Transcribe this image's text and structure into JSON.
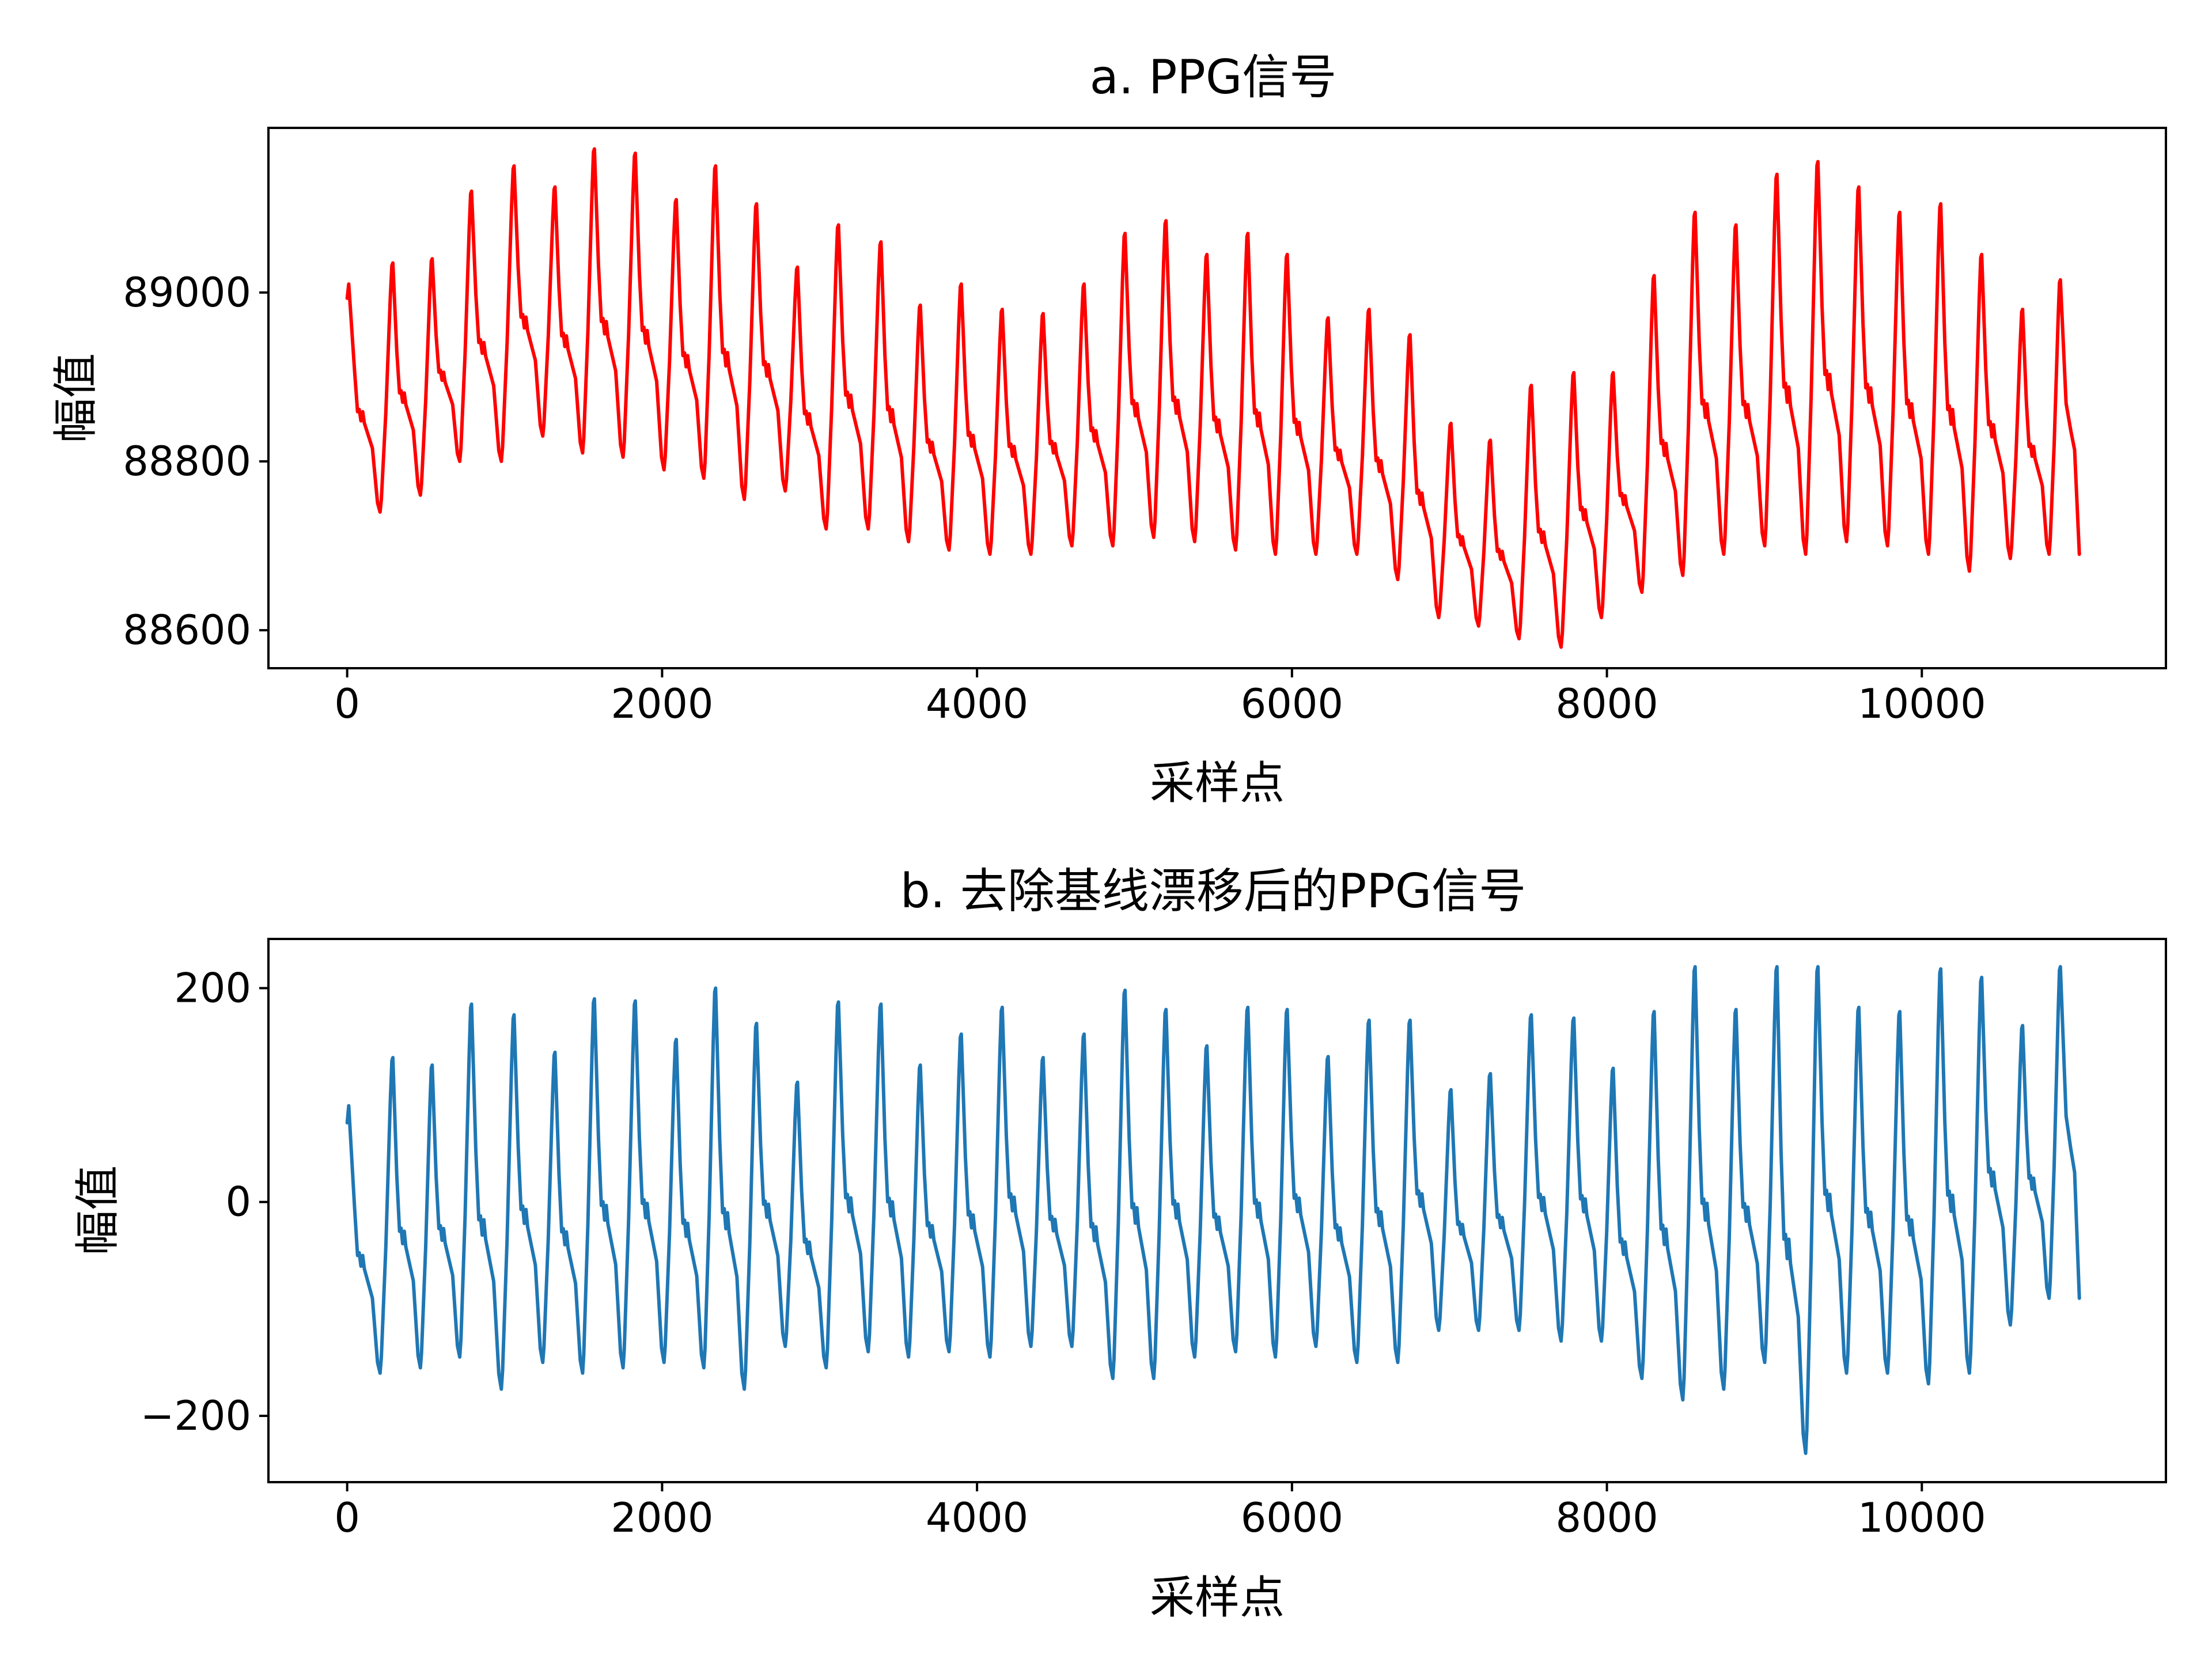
{
  "chart_data": [
    {
      "type": "line",
      "title": "a. PPG信号",
      "xlabel": "采样点",
      "ylabel": "幅值",
      "xlim": [
        -500,
        11550
      ],
      "ylim": [
        88555,
        89195
      ],
      "x_ticks": [
        0,
        2000,
        4000,
        6000,
        8000,
        10000
      ],
      "x_tick_labels": [
        "0",
        "2000",
        "4000",
        "6000",
        "8000",
        "10000"
      ],
      "y_ticks": [
        88600,
        88800,
        89000
      ],
      "y_tick_labels": [
        "88600",
        "88800",
        "89000"
      ],
      "grid": false,
      "legend": "none",
      "color": "#ff0000",
      "series": [
        {
          "x_start": 0,
          "x_end": 11000,
          "beat_peak_x": [
            20,
            290,
            540,
            790,
            1060,
            1320,
            1570,
            1830,
            2090,
            2340,
            2600,
            2860,
            3120,
            3390,
            3640,
            3900,
            4160,
            4420,
            4680,
            4940,
            5200,
            5460,
            5720,
            5970,
            6230,
            6490,
            6750,
            7010,
            7260,
            7520,
            7790,
            8040,
            8300,
            8560,
            8820,
            9080,
            9340,
            9600,
            9860,
            10120,
            10380,
            10640,
            10880
          ],
          "beat_peak_y": [
            89010,
            89035,
            89040,
            89120,
            89150,
            89125,
            89170,
            89165,
            89110,
            89150,
            89105,
            89030,
            89080,
            89060,
            88985,
            89010,
            88980,
            88975,
            89010,
            89070,
            89085,
            89045,
            89070,
            89045,
            88970,
            88980,
            88950,
            88845,
            88825,
            88890,
            88905,
            88905,
            89020,
            89095,
            89080,
            89140,
            89155,
            89125,
            89095,
            89105,
            89045,
            88980,
            89015
          ],
          "beat_trough_y": [
            88730,
            88740,
            88760,
            88800,
            88800,
            88830,
            88810,
            88805,
            88790,
            88780,
            88755,
            88765,
            88720,
            88720,
            88705,
            88695,
            88690,
            88690,
            88700,
            88700,
            88710,
            88705,
            88695,
            88690,
            88690,
            88690,
            88660,
            88615,
            88605,
            88590,
            88580,
            88615,
            88645,
            88665,
            88690,
            88700,
            88690,
            88705,
            88700,
            88690,
            88670,
            88685,
            88690
          ],
          "end_value": 88690
        }
      ]
    },
    {
      "type": "line",
      "title": "b. 去除基线漂移后的PPG信号",
      "xlabel": "采样点",
      "ylabel": "幅值",
      "xlim": [
        -500,
        11550
      ],
      "ylim": [
        -262,
        246
      ],
      "x_ticks": [
        0,
        2000,
        4000,
        6000,
        8000,
        10000
      ],
      "x_tick_labels": [
        "0",
        "2000",
        "4000",
        "6000",
        "8000",
        "10000"
      ],
      "y_ticks": [
        -200,
        0,
        200
      ],
      "y_tick_labels": [
        "−200",
        "0",
        "200"
      ],
      "grid": false,
      "legend": "none",
      "color": "#1f77b4",
      "series": [
        {
          "x_start": 0,
          "x_end": 11000,
          "beat_peak_x": [
            20,
            290,
            540,
            790,
            1060,
            1320,
            1570,
            1830,
            2090,
            2340,
            2600,
            2860,
            3120,
            3390,
            3640,
            3900,
            4160,
            4420,
            4680,
            4940,
            5200,
            5460,
            5720,
            5970,
            6230,
            6490,
            6750,
            7010,
            7260,
            7520,
            7790,
            8040,
            8300,
            8560,
            8820,
            9080,
            9340,
            9600,
            9860,
            10120,
            10380,
            10640,
            10880
          ],
          "beat_peak_y": [
            90,
            135,
            128,
            185,
            175,
            140,
            190,
            188,
            152,
            200,
            167,
            112,
            187,
            185,
            128,
            157,
            182,
            135,
            157,
            198,
            180,
            146,
            182,
            180,
            136,
            170,
            170,
            105,
            120,
            175,
            172,
            125,
            178,
            220,
            180,
            220,
            220,
            182,
            178,
            218,
            210,
            165,
            220
          ],
          "beat_trough_y": [
            -175,
            -160,
            -155,
            -145,
            -175,
            -150,
            -160,
            -155,
            -150,
            -155,
            -175,
            -135,
            -155,
            -140,
            -145,
            -140,
            -145,
            -135,
            -135,
            -165,
            -165,
            -145,
            -140,
            -145,
            -135,
            -150,
            -150,
            -120,
            -120,
            -120,
            -130,
            -130,
            -165,
            -185,
            -175,
            -150,
            -235,
            -160,
            -160,
            -170,
            -160,
            -115,
            -90
          ],
          "end_value": -90
        }
      ]
    }
  ]
}
